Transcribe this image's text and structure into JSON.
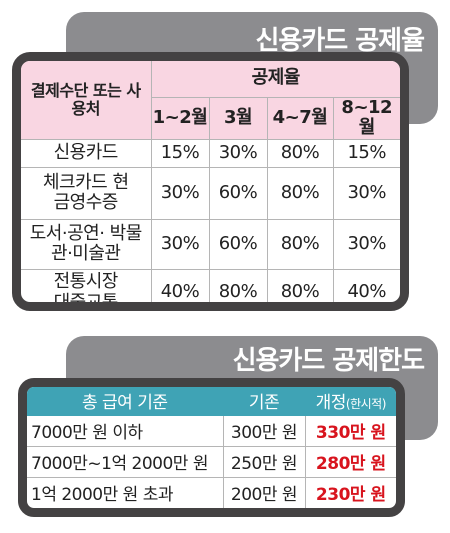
{
  "section1": {
    "title": "신용카드 공제율",
    "header": {
      "method": "결제수단 또는 사용처",
      "rate": "공제율",
      "periods": [
        "1~2월",
        "3월",
        "4~7월",
        "8~12월"
      ]
    },
    "rows": [
      {
        "label": "신용카드",
        "values": [
          "15%",
          "30%",
          "80%",
          "15%"
        ]
      },
      {
        "label": "체크카드 현금영수증",
        "values": [
          "30%",
          "60%",
          "80%",
          "30%"
        ]
      },
      {
        "label": "도서·공연· 박물관·미술관",
        "values": [
          "30%",
          "60%",
          "80%",
          "30%"
        ]
      },
      {
        "label": "전통시장 대중교통",
        "values": [
          "40%",
          "80%",
          "80%",
          "40%"
        ]
      }
    ]
  },
  "section2": {
    "title": "신용카드 공제한도",
    "header": {
      "basis": "총 급여 기준",
      "current": "기존",
      "revised": "개정",
      "revised_note": "(한시적)"
    },
    "rows": [
      {
        "basis": "7000만 원 이하",
        "current": "300만 원",
        "revised": "330만 원"
      },
      {
        "basis": "7000만~1억 2000만 원",
        "current": "250만 원",
        "revised": "280만 원"
      },
      {
        "basis": "1억 2000만 원 초과",
        "current": "200만 원",
        "revised": "230만 원"
      }
    ]
  },
  "colors": {
    "banner": "#8c8c8f",
    "frame": "#444243",
    "pink_header": "#f9d6e2",
    "teal_header": "#3fa3b5",
    "highlight_red": "#d8141e"
  }
}
